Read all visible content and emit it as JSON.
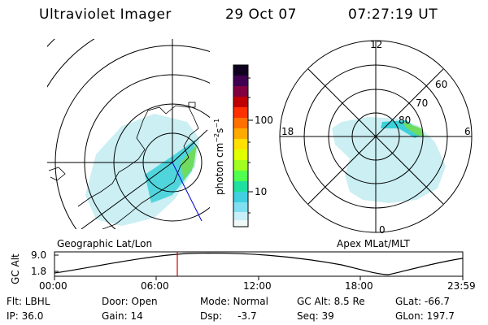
{
  "header": {
    "instrument": "Ultraviolet Imager",
    "date": "29 Oct 07",
    "time": "07:27:19 UT"
  },
  "colorbar": {
    "unit_label": "photon cm",
    "unit_exp1": "−2",
    "unit_mid": "s",
    "unit_exp2": "−1",
    "tick_100": "100",
    "tick_10": "10",
    "colors": [
      "#100020",
      "#400050",
      "#800040",
      "#c00000",
      "#ff3000",
      "#ff7000",
      "#ffaa00",
      "#ffe000",
      "#e0ff00",
      "#a0ff20",
      "#50ff50",
      "#20e0a0",
      "#40d0e0",
      "#80e0f0",
      "#c8f0f8",
      "#f0f8fa"
    ]
  },
  "geographic_panel": {
    "label": "Geographic Lat/Lon"
  },
  "apex_panel": {
    "label": "Apex  MLat/MLT",
    "mlt_12": "12",
    "mlt_18": "18",
    "mlt_6": "6",
    "mlt_0": "0",
    "lat_60": "60",
    "lat_70": "70",
    "lat_80": "80"
  },
  "altitude_plot": {
    "ylabel": "GC Alt",
    "ytick_high": "9.0",
    "ytick_low": "1.8",
    "xticks": [
      "00:00",
      "06:00",
      "12:00",
      "18:00",
      "23:59"
    ],
    "marker_color": "#d00000"
  },
  "status": {
    "flt": "Flt: LBHL",
    "ip": "IP: 36.0",
    "door": "Door: Open",
    "gain": "Gain: 14",
    "mode": "Mode: Normal",
    "dsp": "Dsp:     -3.7",
    "gc_alt": "GC Alt: 8.5 Re",
    "seq": "Seq: 39",
    "glat": "GLat: -66.7",
    "glon": "GLon: 197.7"
  }
}
